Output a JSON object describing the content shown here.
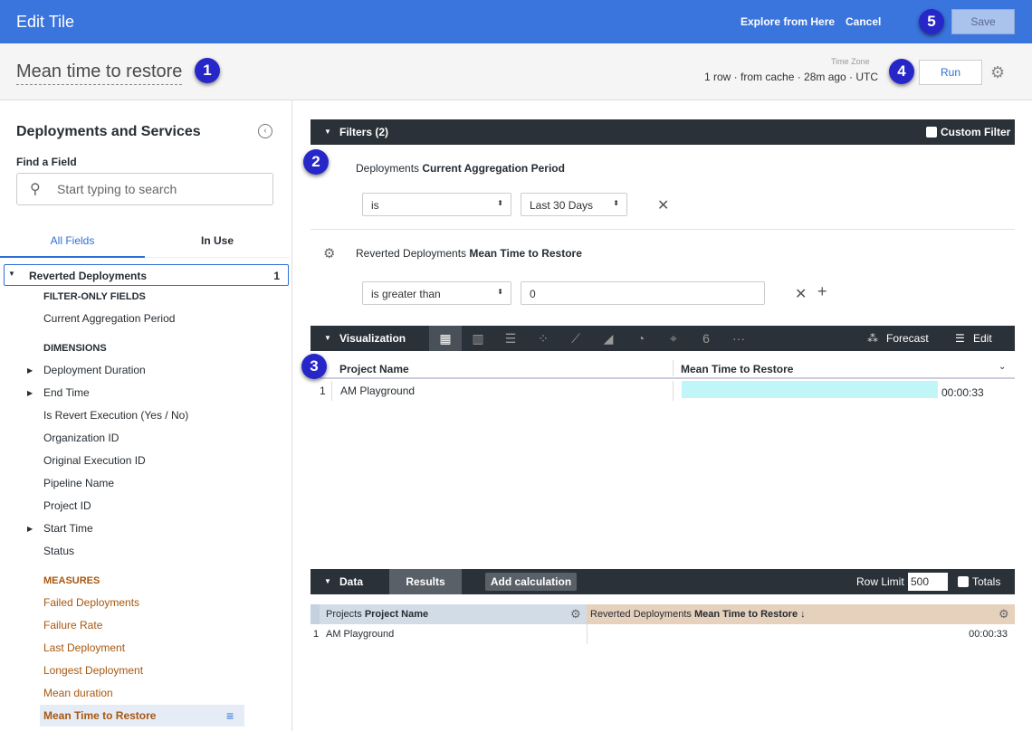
{
  "topbar": {
    "title": "Edit Tile",
    "explore": "Explore from Here",
    "cancel": "Cancel",
    "save": "Save",
    "brand_color": "#3a74dd"
  },
  "subheader": {
    "tile_title": "Mean time to restore",
    "meta": "1 row · from cache · 28m ago · UTC",
    "timezone_label": "Time Zone",
    "run": "Run"
  },
  "badges": [
    "1",
    "2",
    "3",
    "4",
    "5"
  ],
  "sidebar": {
    "title": "Deployments and Services",
    "find_label": "Find a Field",
    "search_placeholder": "Start typing to search",
    "tabs": [
      "All Fields",
      "In Use"
    ],
    "view": {
      "name": "Reverted Deployments",
      "count": "1"
    },
    "filter_only_header": "FILTER-ONLY FIELDS",
    "filter_only": [
      "Current Aggregation Period"
    ],
    "dimensions_header": "DIMENSIONS",
    "dimensions": [
      {
        "label": "Deployment Duration",
        "expandable": true
      },
      {
        "label": "End Time",
        "expandable": true
      },
      {
        "label": "Is Revert Execution (Yes / No)"
      },
      {
        "label": "Organization ID"
      },
      {
        "label": "Original Execution ID"
      },
      {
        "label": "Pipeline Name"
      },
      {
        "label": "Project ID"
      },
      {
        "label": "Start Time",
        "expandable": true
      },
      {
        "label": "Status"
      }
    ],
    "measures_header": "MEASURES",
    "measures": [
      "Failed Deployments",
      "Failure Rate",
      "Last Deployment",
      "Longest Deployment",
      "Mean duration",
      "Mean Time to Restore"
    ],
    "measure_color": "#a8570e"
  },
  "filters": {
    "title": "Filters (2)",
    "custom_filter": "Custom Filter",
    "items": [
      {
        "view": "Deployments",
        "field": "Current Aggregation Period",
        "operator": "is",
        "value": "Last 30 Days"
      },
      {
        "view": "Reverted Deployments",
        "field": "Mean Time to Restore",
        "operator": "is greater than",
        "value": "0"
      }
    ]
  },
  "visualization": {
    "title": "Visualization",
    "forecast": "Forecast",
    "edit": "Edit",
    "icons": [
      "table-icon",
      "column-chart-icon",
      "bar-chart-icon",
      "scatter-icon",
      "line-chart-icon",
      "area-chart-icon",
      "pie-chart-icon",
      "map-pin-icon",
      "single-value-icon",
      "more-icon"
    ],
    "single_value_glyph": "6",
    "columns": [
      "Project Name",
      "Mean Time to Restore"
    ],
    "rows": [
      {
        "num": "1",
        "project": "AM Playground",
        "value": "00:00:33",
        "bar_fraction": 1.0
      }
    ],
    "bar_color": "#c0f6f8"
  },
  "data": {
    "title": "Data",
    "results_tab": "Results",
    "add_calc": "Add calculation",
    "row_limit_label": "Row Limit",
    "row_limit": "500",
    "totals": "Totals",
    "columns": [
      {
        "view": "Projects",
        "field": "Project Name",
        "color": "#d2dce6"
      },
      {
        "view": "Reverted Deployments",
        "field": "Mean Time to Restore ↓",
        "color": "#e6d1bd"
      }
    ],
    "rows": [
      {
        "num": "1",
        "project": "AM Playground",
        "value": "00:00:33"
      }
    ]
  }
}
